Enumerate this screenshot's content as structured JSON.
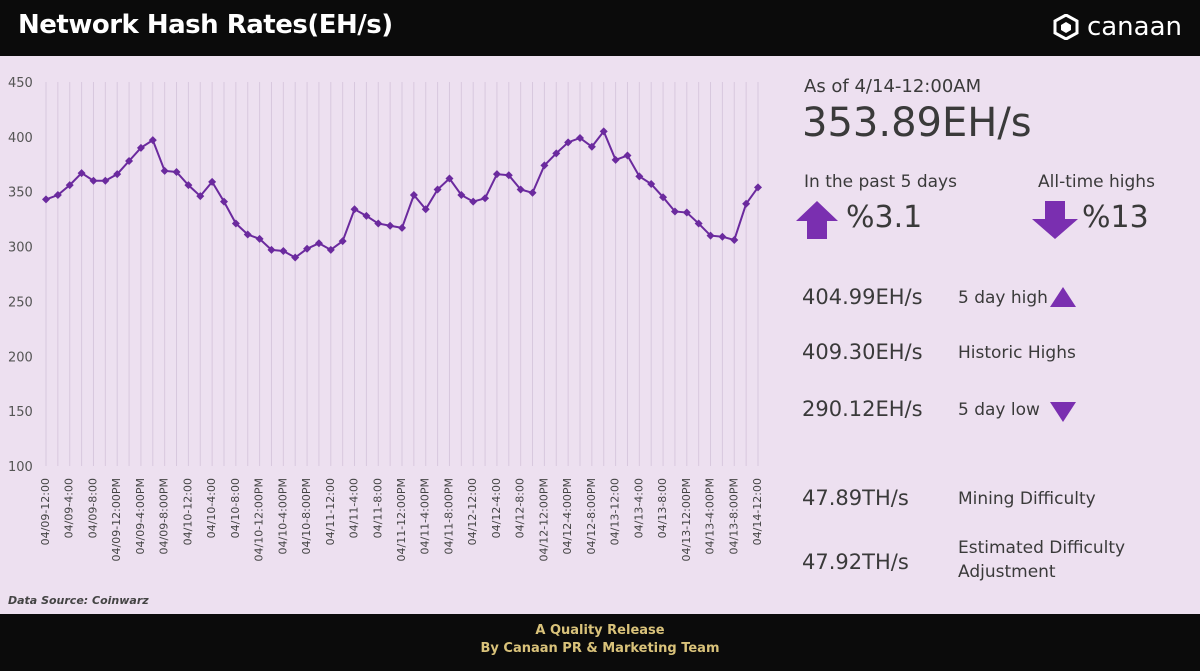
{
  "header": {
    "title": "Network Hash Rates(EH/s)",
    "brand": "canaan"
  },
  "chart_data": {
    "type": "line",
    "ylim": [
      100,
      450
    ],
    "yticks": [
      100,
      150,
      200,
      250,
      300,
      350,
      400,
      450
    ],
    "xlabels": [
      "04/09-12:00",
      "04/09-4:00",
      "04/09-8:00",
      "04/09-12:00PM",
      "04/09-4:00PM",
      "04/09-8:00PM",
      "04/10-12:00",
      "04/10-4:00",
      "04/10-8:00",
      "04/10-12:00PM",
      "04/10-4:00PM",
      "04/10-8:00PM",
      "04/11-12:00",
      "04/11-4:00",
      "04/11-8:00",
      "04/11-12:00PM",
      "04/11-4:00PM",
      "04/11-8:00PM",
      "04/12-12:00",
      "04/12-4:00",
      "04/12-8:00",
      "04/12-12:00PM",
      "04/12-4:00PM",
      "04/12-8:00PM",
      "04/13-12:00",
      "04/13-4:00",
      "04/13-8:00",
      "04/13-12:00PM",
      "04/13-4:00PM",
      "04/13-8:00PM",
      "04/14-12:00"
    ],
    "values": [
      343,
      347,
      356,
      367,
      360,
      360,
      366,
      378,
      390,
      397,
      369,
      368,
      356,
      346,
      359,
      341,
      321,
      311,
      307,
      297,
      296,
      290,
      298,
      303,
      297,
      305,
      334,
      328,
      321,
      319,
      317,
      347,
      334,
      352,
      362,
      347,
      341,
      344,
      366,
      365,
      352,
      349,
      374,
      385,
      395,
      399,
      391,
      405,
      379,
      383,
      364,
      357,
      345,
      332,
      331,
      321,
      310,
      309,
      306,
      339,
      354
    ],
    "series_color": "#6b2a9e",
    "grid": "vertical"
  },
  "stats": {
    "as_of": "As of 4/14-12:00AM",
    "current": "353.89EH/s",
    "past5_label": "In the past 5 days",
    "past5_value": "%3.1",
    "ath_label": "All-time highs",
    "ath_value": "%13",
    "rows": [
      {
        "value": "404.99EH/s",
        "label": "5 day high",
        "icon": "triangle-up-icon"
      },
      {
        "value": "409.30EH/s",
        "label": "Historic Highs"
      },
      {
        "value": "290.12EH/s",
        "label": "5 day low",
        "icon": "triangle-down-icon"
      },
      {
        "value": "47.89TH/s",
        "label": "Mining Difficulty"
      },
      {
        "value": "47.92TH/s",
        "label": "Estimated Difficulty",
        "label2": "Adjustment"
      }
    ],
    "arrow_color": "#7a2fb0"
  },
  "source": "Data Source: Coinwarz",
  "footer": {
    "line1": "A Quality Release",
    "line2": "By Canaan PR & Marketing Team"
  }
}
